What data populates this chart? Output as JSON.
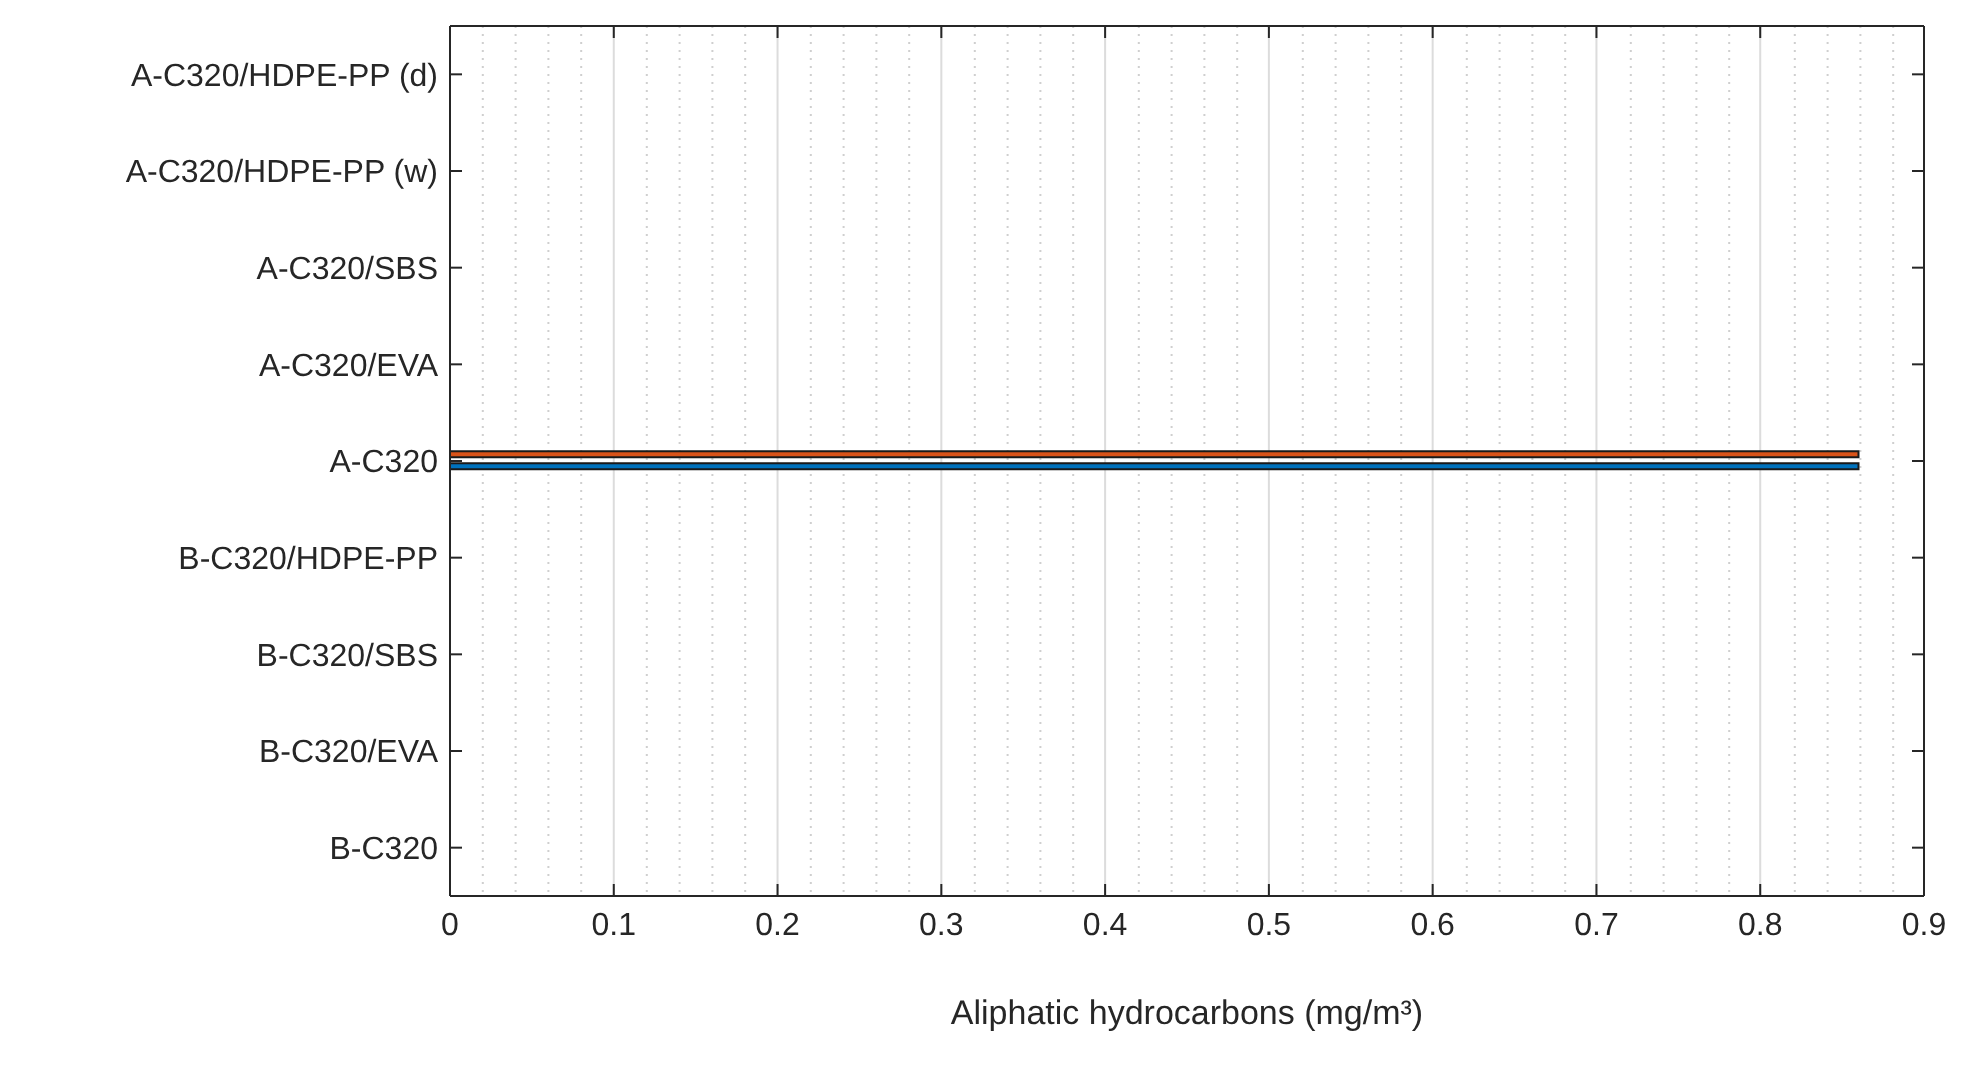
{
  "chart_data": {
    "type": "bar",
    "orientation": "horizontal",
    "xlabel": "Aliphatic hydrocarbons (mg/m³)",
    "categories": [
      "A-C320/HDPE-PP (d)",
      "A-C320/HDPE-PP (w)",
      "A-C320/SBS",
      "A-C320/EVA",
      "A-C320",
      "B-C320/HDPE-PP",
      "B-C320/SBS",
      "B-C320/EVA",
      "B-C320"
    ],
    "series": [
      {
        "color": "#d95319",
        "values": [
          null,
          null,
          null,
          null,
          0.86,
          null,
          null,
          null,
          null
        ]
      },
      {
        "color": "#0072bd",
        "values": [
          null,
          null,
          null,
          null,
          0.86,
          null,
          null,
          null,
          null
        ]
      }
    ],
    "xlim": [
      0,
      0.9
    ],
    "xticks": [
      0,
      0.1,
      0.2,
      0.3,
      0.4,
      0.5,
      0.6,
      0.7,
      0.8,
      0.9
    ],
    "grid": "x"
  }
}
